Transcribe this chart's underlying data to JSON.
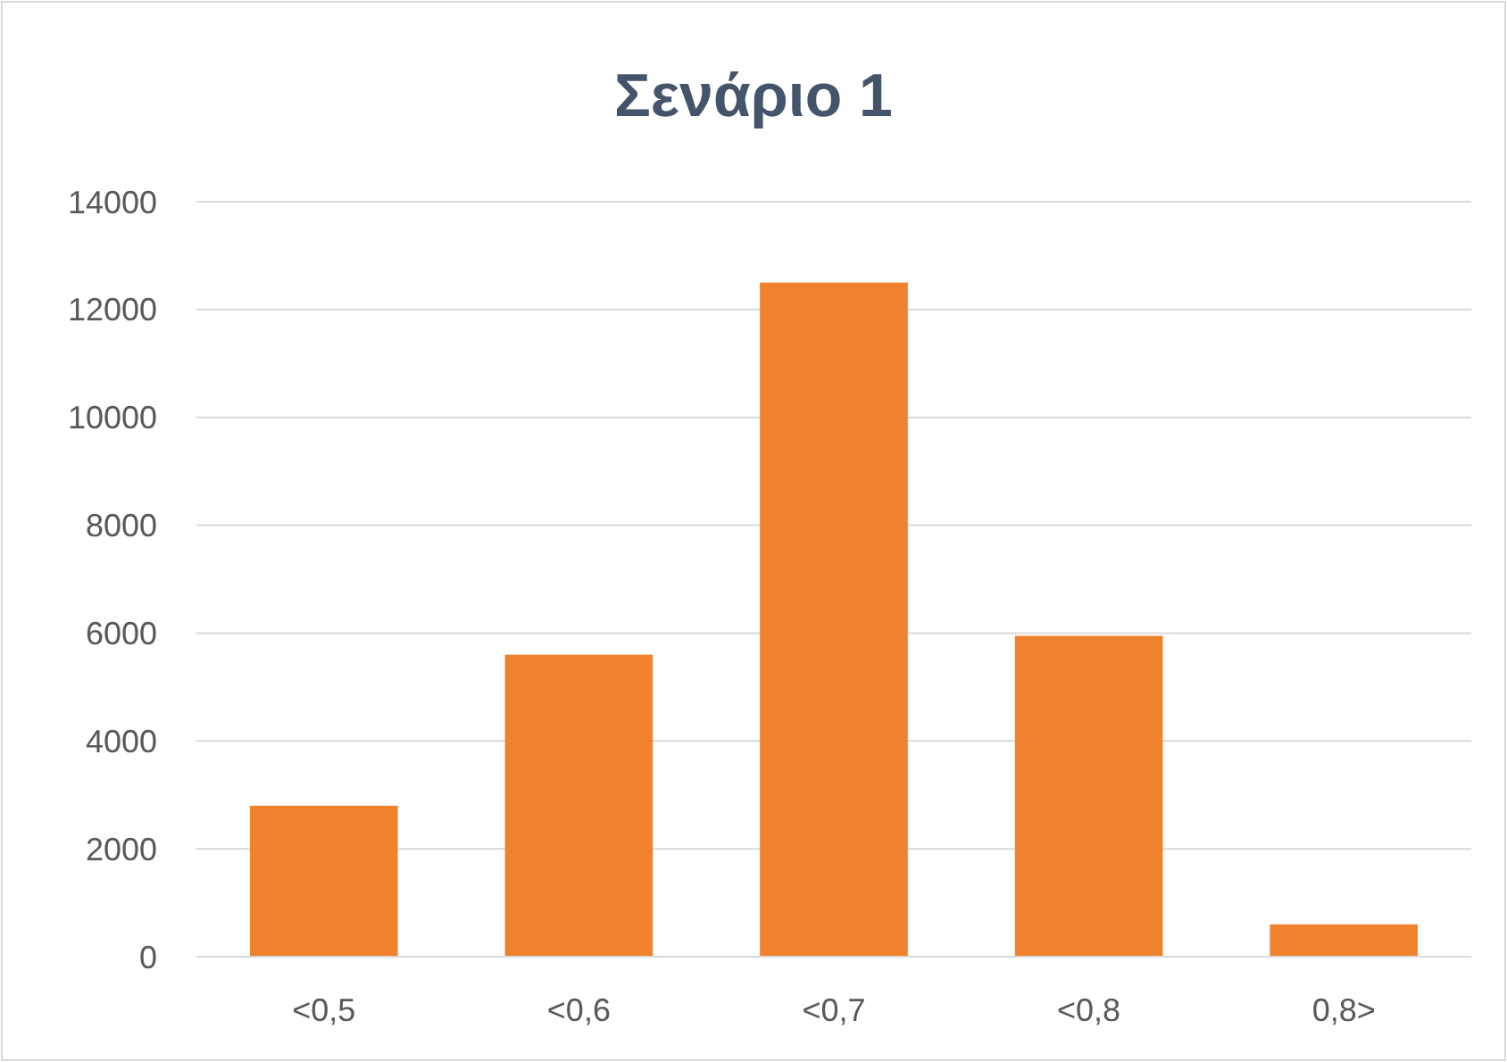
{
  "chart_data": {
    "type": "bar",
    "title": "Σενάριο 1",
    "categories": [
      "<0,5",
      "<0,6",
      "<0,7",
      "<0,8",
      "0,8>"
    ],
    "values": [
      2800,
      5600,
      12500,
      5950,
      600
    ],
    "color": "#f0822d",
    "ylim": [
      0,
      14000
    ],
    "yticks": [
      0,
      2000,
      4000,
      6000,
      8000,
      10000,
      12000,
      14000
    ],
    "grid": "y"
  }
}
